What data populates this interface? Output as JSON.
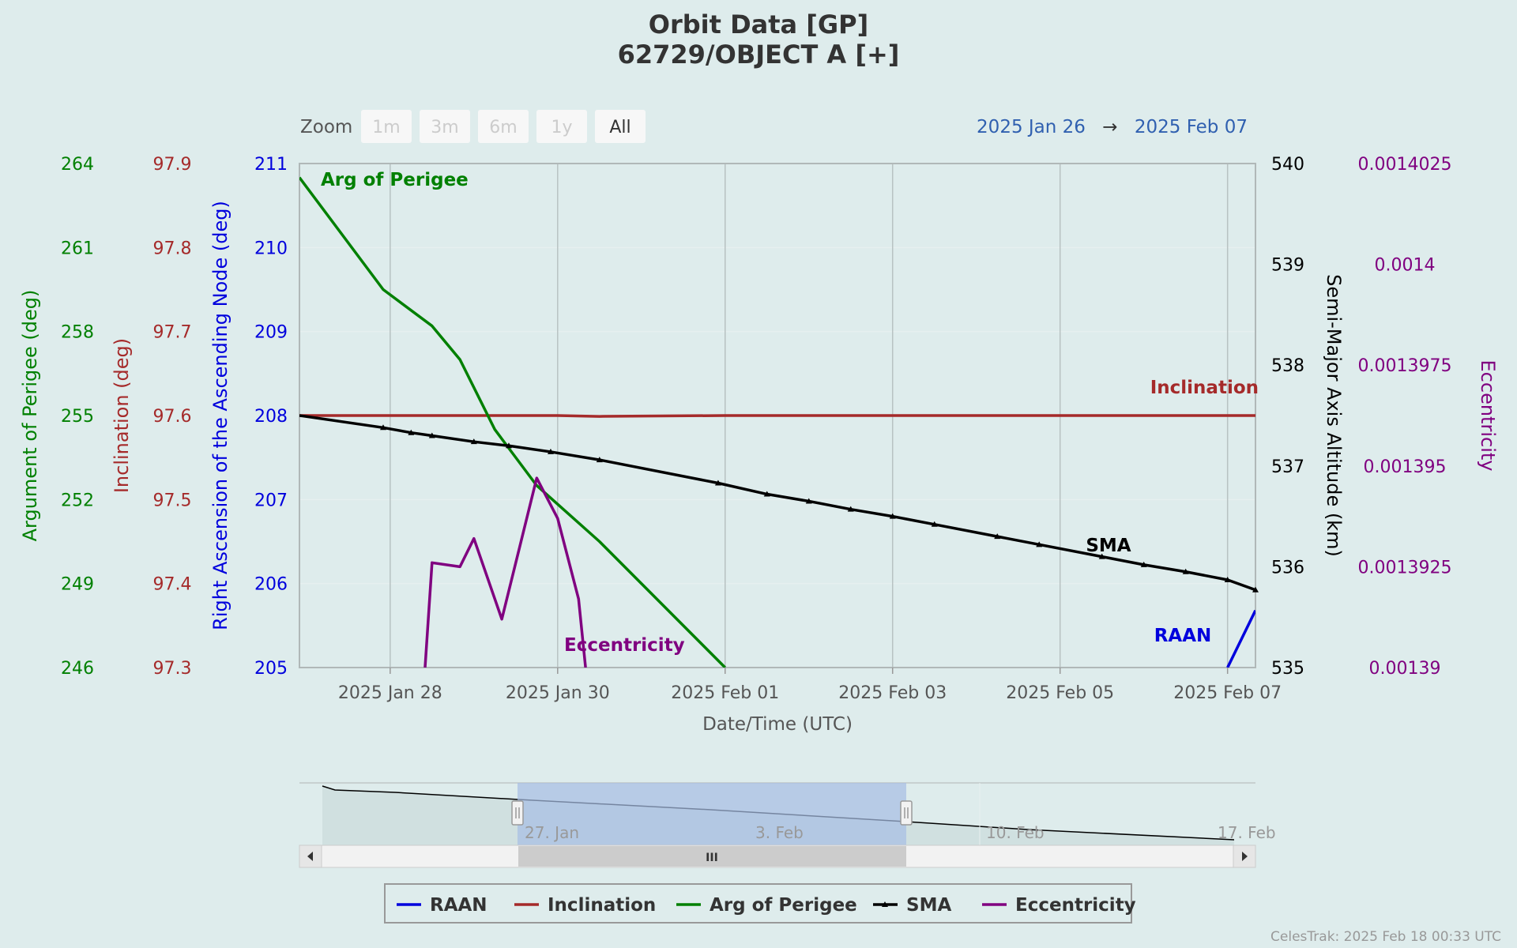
{
  "title_line1": "Orbit Data [GP]",
  "title_line2": "62729/OBJECT A [+]",
  "zoom": {
    "label": "Zoom",
    "buttons": [
      "1m",
      "3m",
      "6m",
      "1y",
      "All"
    ],
    "active": "All"
  },
  "range": {
    "from": "2025 Jan 26",
    "arrow": "→",
    "to": "2025 Feb 07"
  },
  "credit": "CelesTrak: 2025 Feb 18 00:33 UTC",
  "colors": {
    "raan": "#0000dd",
    "inclination": "#a52a2a",
    "argp": "#008000",
    "sma": "#000000",
    "ecc": "#800080",
    "background": "#deecec"
  },
  "navigator": {
    "labels": [
      "27. Jan",
      "3. Feb",
      "10. Feb",
      "17. Feb"
    ],
    "scroll_grip": "III"
  },
  "chart_data": {
    "type": "line",
    "xlabel": "Date/Time (UTC)",
    "x_range": [
      "2025-01-26T22:00",
      "2025-02-07T08:00"
    ],
    "x_ticks": [
      "2025 Jan 28",
      "2025 Jan 30",
      "2025 Feb 01",
      "2025 Feb 03",
      "2025 Feb 05",
      "2025 Feb 07"
    ],
    "x_tick_dates": [
      "2025-01-28",
      "2025-01-30",
      "2025-02-01",
      "2025-02-03",
      "2025-02-05",
      "2025-02-07"
    ],
    "grid": true,
    "legend_position": "bottom-center",
    "axes": [
      {
        "id": "argp",
        "title": "Argument of Perigee (deg)",
        "side": "left",
        "range": [
          246,
          264
        ],
        "ticks": [
          "264",
          "261",
          "258",
          "255",
          "252",
          "249",
          "246"
        ],
        "color": "#008000"
      },
      {
        "id": "inc",
        "title": "Inclination (deg)",
        "side": "left",
        "range": [
          97.3,
          97.9
        ],
        "ticks": [
          "97.9",
          "97.8",
          "97.7",
          "97.6",
          "97.5",
          "97.4",
          "97.3"
        ],
        "color": "#a52a2a"
      },
      {
        "id": "raan",
        "title": "Right Ascension of the Ascending Node (deg)",
        "side": "left",
        "range": [
          205,
          211
        ],
        "ticks": [
          "211",
          "210",
          "209",
          "208",
          "207",
          "206",
          "205"
        ],
        "color": "#0000dd"
      },
      {
        "id": "sma",
        "title": "Semi-Major Axis Altitude (km)",
        "side": "right",
        "range": [
          535,
          540
        ],
        "ticks": [
          "540",
          "539",
          "538",
          "537",
          "536",
          "535"
        ],
        "color": "#000000"
      },
      {
        "id": "ecc",
        "title": "Eccentricity",
        "side": "right",
        "range": [
          0.00139,
          0.0014025
        ],
        "ticks": [
          "0.0014025",
          "0.0014",
          "0.0013975",
          "0.001395",
          "0.0013925",
          "0.00139"
        ],
        "color": "#800080"
      }
    ],
    "series": [
      {
        "name": "RAAN",
        "axis": "raan",
        "color": "#0000dd",
        "markers": false,
        "points": [
          [
            "2025-02-07T00:00",
            205.0
          ],
          [
            "2025-02-07T08:00",
            205.68
          ]
        ]
      },
      {
        "name": "Inclination",
        "axis": "inc",
        "color": "#a52a2a",
        "markers": false,
        "points": [
          [
            "2025-01-26T22:00",
            97.6
          ],
          [
            "2025-01-28T00:00",
            97.6
          ],
          [
            "2025-01-30T00:00",
            97.6
          ],
          [
            "2025-01-30T12:00",
            97.599
          ],
          [
            "2025-02-01T00:00",
            97.6
          ],
          [
            "2025-02-03T00:00",
            97.6
          ],
          [
            "2025-02-05T12:00",
            97.6
          ],
          [
            "2025-02-07T08:00",
            97.6
          ]
        ]
      },
      {
        "name": "Arg of Perigee",
        "axis": "argp",
        "color": "#008000",
        "markers": false,
        "points": [
          [
            "2025-01-26T22:00",
            263.5
          ],
          [
            "2025-01-27T22:00",
            259.5
          ],
          [
            "2025-01-28T12:00",
            258.2
          ],
          [
            "2025-01-28T20:00",
            257.0
          ],
          [
            "2025-01-29T06:00",
            254.5
          ],
          [
            "2025-01-29T18:00",
            252.5
          ],
          [
            "2025-01-30T12:00",
            250.5
          ],
          [
            "2025-02-01T00:00",
            246.0
          ]
        ]
      },
      {
        "name": "SMA",
        "axis": "sma",
        "color": "#000000",
        "markers": true,
        "points": [
          [
            "2025-01-26T22:00",
            537.5
          ],
          [
            "2025-01-27T22:00",
            537.38
          ],
          [
            "2025-01-28T06:00",
            537.33
          ],
          [
            "2025-01-28T12:00",
            537.3
          ],
          [
            "2025-01-29T00:00",
            537.24
          ],
          [
            "2025-01-29T10:00",
            537.2
          ],
          [
            "2025-01-29T22:00",
            537.14
          ],
          [
            "2025-01-30T12:00",
            537.06
          ],
          [
            "2025-01-31T22:00",
            536.83
          ],
          [
            "2025-02-01T12:00",
            536.72
          ],
          [
            "2025-02-02T00:00",
            536.65
          ],
          [
            "2025-02-02T12:00",
            536.57
          ],
          [
            "2025-02-03T00:00",
            536.5
          ],
          [
            "2025-02-03T12:00",
            536.42
          ],
          [
            "2025-02-04T06:00",
            536.3
          ],
          [
            "2025-02-04T18:00",
            536.22
          ],
          [
            "2025-02-05T12:00",
            536.1
          ],
          [
            "2025-02-06T00:00",
            536.02
          ],
          [
            "2025-02-06T12:00",
            535.95
          ],
          [
            "2025-02-07T00:00",
            535.87
          ],
          [
            "2025-02-07T08:00",
            535.77
          ]
        ]
      },
      {
        "name": "Eccentricity",
        "axis": "ecc",
        "color": "#800080",
        "markers": false,
        "points": [
          [
            "2025-01-28T10:00",
            0.00139
          ],
          [
            "2025-01-28T12:00",
            0.0013926
          ],
          [
            "2025-01-28T20:00",
            0.0013925
          ],
          [
            "2025-01-29T00:00",
            0.0013932
          ],
          [
            "2025-01-29T08:00",
            0.0013912
          ],
          [
            "2025-01-29T18:00",
            0.0013947
          ],
          [
            "2025-01-30T00:00",
            0.0013937
          ],
          [
            "2025-01-30T06:00",
            0.0013917
          ],
          [
            "2025-01-30T08:00",
            0.00139
          ]
        ]
      }
    ],
    "series_labels": [
      {
        "text": "Arg of Perigee",
        "series": "Arg of Perigee"
      },
      {
        "text": "Inclination",
        "series": "Inclination"
      },
      {
        "text": "SMA",
        "series": "SMA"
      },
      {
        "text": "RAAN",
        "series": "RAAN"
      },
      {
        "text": "Eccentricity",
        "series": "Eccentricity"
      }
    ]
  }
}
